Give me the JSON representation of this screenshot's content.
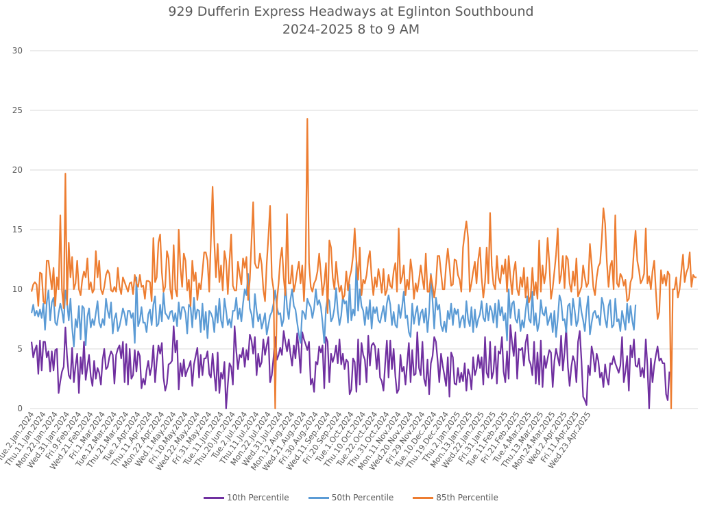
{
  "chart_data": {
    "type": "line",
    "title": "929 Dufferin Express Headways at Eglinton Southbound",
    "subtitle": "2024-2025 8 to 9 AM",
    "xlabel": "",
    "ylabel": "",
    "ylim": [
      0,
      30
    ],
    "yticks": [
      0,
      5,
      10,
      15,
      20,
      25,
      30
    ],
    "grid": true,
    "legend_position": "bottom",
    "x_tick_labels": [
      "Tue.2.Jan.2024",
      "Thu.11.Jan.2024",
      "Mon.22.Jan.2024",
      "Wed.31.Jan.2024",
      "Fri.9.Feb.2024",
      "Wed.21.Feb.2024",
      "Fri.1.Mar.2024",
      "Tue.12.Mar.2024",
      "Thu.21.Mar.2024",
      "Tue.2.Apr.2024",
      "Thu.11.Apr.2024",
      "Mon.22.Apr.2024",
      "Wed.1.May.2024",
      "Fri.10.May.2024",
      "Wed.22.May.2024",
      "Fri.31.May.2024",
      "Tue.11.Jun.2024",
      "Thu.20.Jun.2024",
      "Tue.2.Jul.2024",
      "Thu.11.Jul.2024",
      "Mon.22.Jul.2024",
      "Wed.31.Jul.2024",
      "Mon.12.Aug.2024",
      "Wed.21.Aug.2024",
      "Fri.30.Aug.2024",
      "Wed.11.Sep.2024",
      "Fri.20.Sep.2024",
      "Tue.1.Oct.2024",
      "Thu.10.Oct.2024",
      "Tue.22.Oct.2024",
      "Thu.31.Oct.2024",
      "Mon.11.Nov.2024",
      "Wed.20.Nov.2024",
      "Fri.29.Nov.2024",
      "Tue.10.Dec.2024",
      "Thu.19.Dec.2024",
      "Thu.2.Jan.2025",
      "Mon.13.Jan.2025",
      "Wed.22.Jan.2025",
      "Fri.31.Jan.2025",
      "Tue.11.Feb.2025",
      "Fri.21.Feb.2025",
      "Tue.4.Mar.2025",
      "Thu.13.Mar.2025",
      "Mon.24.Mar.2025",
      "Wed.2.Apr.2025",
      "Fri.11.Apr.2025",
      "Wed.23.Apr.2025"
    ],
    "points_per_tick": 7,
    "series": [
      {
        "name": "10th Percentile",
        "color": "#7030a0",
        "values": [
          5.6,
          4.3,
          4.9,
          5.3,
          2.9,
          5.7,
          3.2,
          5.6,
          5.6,
          4.3,
          4.8,
          3.1,
          4.8,
          3.2,
          4.9,
          5.0,
          1.3,
          2.3,
          3.1,
          3.5,
          6.8,
          4.4,
          2.8,
          2.5,
          5.1,
          2.2,
          3.6,
          4.6,
          1.3,
          4.3,
          2.9,
          5.6,
          2.4,
          3.5,
          4.5,
          2.7,
          1.9,
          4.0,
          2.5,
          3.4,
          3.0,
          2.0,
          4.1,
          5.0,
          3.3,
          3.5,
          4.3,
          4.8,
          4.5,
          2.1,
          4.5,
          5.0,
          5.3,
          4.2,
          5.6,
          2.2,
          5.4,
          2.0,
          5.0,
          2.5,
          2.8,
          4.9,
          3.1,
          4.8,
          4.4,
          1.7,
          2.5,
          2.0,
          3.2,
          4.0,
          2.8,
          3.5,
          5.3,
          2.2,
          3.9,
          5.3,
          4.6,
          5.5,
          2.6,
          1.5,
          2.1,
          3.7,
          3.8,
          4.0,
          6.9,
          4.7,
          5.7,
          1.6,
          3.8,
          2.7,
          4.1,
          2.7,
          3.2,
          3.5,
          4.0,
          1.9,
          3.7,
          4.4,
          5.1,
          2.6,
          4.5,
          2.8,
          4.2,
          4.2,
          4.8,
          2.9,
          2.6,
          4.6,
          2.9,
          1.5,
          4.7,
          1.3,
          3.0,
          2.5,
          3.9,
          0.0,
          2.0,
          3.8,
          3.5,
          2.0,
          6.9,
          4.8,
          3.3,
          4.5,
          4.3,
          5.1,
          3.5,
          4.9,
          4.1,
          6.2,
          5.7,
          4.6,
          6.0,
          2.8,
          4.6,
          3.5,
          3.9,
          5.8,
          4.5,
          5.3,
          6.0,
          2.2,
          2.8,
          4.3,
          6.0,
          4.1,
          4.5,
          5.1,
          4.5,
          6.5,
          5.6,
          4.8,
          5.8,
          4.6,
          3.6,
          5.3,
          4.2,
          6.3,
          4.9,
          3.0,
          6.4,
          5.8,
          5.4,
          4.9,
          5.6,
          2.0,
          2.5,
          1.4,
          3.9,
          3.7,
          5.2,
          4.7,
          5.3,
          1.7,
          6.0,
          5.6,
          2.2,
          4.6,
          3.9,
          4.4,
          5.3,
          3.8,
          5.8,
          3.7,
          4.6,
          3.3,
          4.1,
          3.9,
          1.2,
          1.6,
          4.2,
          3.9,
          1.4,
          5.8,
          2.0,
          5.5,
          4.5,
          4.1,
          2.2,
          6.1,
          3.6,
          5.3,
          5.5,
          5.2,
          3.3,
          5.0,
          2.6,
          2.3,
          1.5,
          3.8,
          5.7,
          2.6,
          5.7,
          3.3,
          5.0,
          2.7,
          1.3,
          1.6,
          4.5,
          3.1,
          3.5,
          2.0,
          3.8,
          5.5,
          2.2,
          4.9,
          2.8,
          2.9,
          6.4,
          3.4,
          2.8,
          5.6,
          2.5,
          1.9,
          4.1,
          1.2,
          3.8,
          4.4,
          6.0,
          5.6,
          4.0,
          2.2,
          4.6,
          3.6,
          2.8,
          1.9,
          4.3,
          1.0,
          4.7,
          4.3,
          2.1,
          2.0,
          3.4,
          2.2,
          3.0,
          2.3,
          3.8,
          1.5,
          3.3,
          2.8,
          1.6,
          4.3,
          2.8,
          3.3,
          4.5,
          3.4,
          4.3,
          2.0,
          6.0,
          3.0,
          2.6,
          5.6,
          2.5,
          3.1,
          5.2,
          2.1,
          4.8,
          4.6,
          6.0,
          3.1,
          2.2,
          4.8,
          2.5,
          7.0,
          5.5,
          4.4,
          6.4,
          2.5,
          5.0,
          4.9,
          5.1,
          3.6,
          5.5,
          6.2,
          4.1,
          3.7,
          2.8,
          5.6,
          2.1,
          4.7,
          2.0,
          5.7,
          1.8,
          4.4,
          3.4,
          4.2,
          4.9,
          4.7,
          1.8,
          4.0,
          5.0,
          4.3,
          3.6,
          6.1,
          3.2,
          4.7,
          6.8,
          3.5,
          1.9,
          3.5,
          4.4,
          3.9,
          2.2,
          5.6,
          6.5,
          4.0,
          1.0,
          0.7,
          0.3,
          3.6,
          2.8,
          5.2,
          4.5,
          3.1,
          4.6,
          4.0,
          2.6,
          3.0,
          1.8,
          3.7,
          2.6,
          2.0,
          3.8,
          3.7,
          4.4,
          3.8,
          3.4,
          3.0,
          3.6,
          6.0,
          2.2,
          3.1,
          4.4,
          1.5,
          5.3,
          4.3,
          5.8,
          3.6,
          3.5,
          4.2,
          2.7,
          3.4,
          2.6,
          5.8,
          3.6,
          0.0,
          4.2,
          2.2,
          3.6,
          4.5,
          5.2,
          4.0,
          4.2,
          3.8,
          3.8,
          1.2,
          0.7,
          3.1
        ]
      },
      {
        "name": "50th Percentile",
        "color": "#5b9bd5",
        "values": [
          8.0,
          8.7,
          7.8,
          8.2,
          7.7,
          8.3,
          7.6,
          8.8,
          6.6,
          8.9,
          9.9,
          7.4,
          8.9,
          9.3,
          7.2,
          7.0,
          8.0,
          8.8,
          8.2,
          7.2,
          9.9,
          8.9,
          7.4,
          9.2,
          6.8,
          5.2,
          7.5,
          6.8,
          8.6,
          5.8,
          8.6,
          8.4,
          5.3,
          7.7,
          8.4,
          6.8,
          7.5,
          7.0,
          8.0,
          9.0,
          7.2,
          6.8,
          7.5,
          7.0,
          9.2,
          8.2,
          7.6,
          8.9,
          6.3,
          7.5,
          8.0,
          6.5,
          6.9,
          7.6,
          8.4,
          7.9,
          7.0,
          8.2,
          8.2,
          7.6,
          8.0,
          5.5,
          11.0,
          6.9,
          7.4,
          8.5,
          7.2,
          7.2,
          6.4,
          7.9,
          8.3,
          7.0,
          8.7,
          9.4,
          6.9,
          7.1,
          8.7,
          7.3,
          9.7,
          8.0,
          7.8,
          7.5,
          8.1,
          8.2,
          7.3,
          8.0,
          6.9,
          8.9,
          7.5,
          8.5,
          8.5,
          8.0,
          6.3,
          8.7,
          8.5,
          6.8,
          9.3,
          7.5,
          8.3,
          8.2,
          6.4,
          8.8,
          6.6,
          8.1,
          5.9,
          8.2,
          8.0,
          7.6,
          6.4,
          8.6,
          7.2,
          9.2,
          7.4,
          6.8,
          9.2,
          8.2,
          7.0,
          7.5,
          6.8,
          8.2,
          8.2,
          9.3,
          7.5,
          8.4,
          7.3,
          8.8,
          10.0,
          9.5,
          11.3,
          8.4,
          7.9,
          6.8,
          9.6,
          8.2,
          7.3,
          7.9,
          6.7,
          7.3,
          8.0,
          6.2,
          7.0,
          7.8,
          8.1,
          8.8,
          9.9,
          8.5,
          7.9,
          8.0,
          6.9,
          7.5,
          10.6,
          8.5,
          7.5,
          9.1,
          10.0,
          8.6,
          8.3,
          7.2,
          6.2,
          5.5,
          8.2,
          8.0,
          7.5,
          9.2,
          8.8,
          8.5,
          7.6,
          8.4,
          10.0,
          8.7,
          9.1,
          8.5,
          7.2,
          5.5,
          8.4,
          9.3,
          9.0,
          7.3,
          7.6,
          8.4,
          10.1,
          8.2,
          7.0,
          7.8,
          9.4,
          8.8,
          9.0,
          7.2,
          10.4,
          7.4,
          8.3,
          7.8,
          12.3,
          8.2,
          10.0,
          8.6,
          8.2,
          7.0,
          8.5,
          7.5,
          9.1,
          6.7,
          8.5,
          8.0,
          8.5,
          7.4,
          7.2,
          7.9,
          8.6,
          7.3,
          8.8,
          9.5,
          8.7,
          7.0,
          8.1,
          7.0,
          6.8,
          8.7,
          7.6,
          8.5,
          9.8,
          7.6,
          7.8,
          6.4,
          6.0,
          8.8,
          7.1,
          8.0,
          8.6,
          7.0,
          8.0,
          8.3,
          7.2,
          8.4,
          6.4,
          8.1,
          11.3,
          9.0,
          6.7,
          9.3,
          8.3,
          8.7,
          7.0,
          6.5,
          7.3,
          6.4,
          8.2,
          7.5,
          8.8,
          7.0,
          8.4,
          7.9,
          8.3,
          6.8,
          7.5,
          7.8,
          6.8,
          9.0,
          7.5,
          6.9,
          8.5,
          6.4,
          8.3,
          6.8,
          7.5,
          7.9,
          9.0,
          7.6,
          7.3,
          8.8,
          7.4,
          8.6,
          8.2,
          7.2,
          8.8,
          6.8,
          9.1,
          7.8,
          8.5,
          7.4,
          8.0,
          5.7,
          10.0,
          7.6,
          8.8,
          9.0,
          7.5,
          7.2,
          8.3,
          6.5,
          7.4,
          6.8,
          8.2,
          9.4,
          7.5,
          7.2,
          9.8,
          7.0,
          8.0,
          6.5,
          7.2,
          9.1,
          8.0,
          7.8,
          8.5,
          7.0,
          7.5,
          8.0,
          6.4,
          8.2,
          6.0,
          7.5,
          9.5,
          9.0,
          7.4,
          7.5,
          6.4,
          8.6,
          8.8,
          7.0,
          9.2,
          8.2,
          6.9,
          7.4,
          9.3,
          8.1,
          7.4,
          6.5,
          8.3,
          9.4,
          6.2,
          7.2,
          8.0,
          8.2,
          7.6,
          7.8,
          7.0,
          9.3,
          8.7,
          7.5,
          6.8,
          8.6,
          9.1,
          6.8,
          7.0,
          9.2,
          7.3,
          7.5,
          6.5,
          8.2,
          7.4,
          6.6,
          8.8,
          7.2,
          8.6,
          7.4,
          6.6,
          8.7
        ]
      },
      {
        "name": "85th Percentile",
        "color": "#ed7d31",
        "values": [
          9.8,
          10.4,
          10.6,
          10.4,
          8.6,
          11.4,
          11.3,
          9.0,
          8.8,
          12.4,
          12.4,
          11.2,
          10.0,
          11.8,
          8.6,
          11.0,
          10.0,
          16.2,
          9.9,
          8.4,
          19.7,
          8.7,
          13.9,
          11.0,
          12.7,
          10.0,
          10.5,
          12.4,
          10.0,
          9.5,
          10.8,
          11.5,
          11.0,
          12.6,
          10.0,
          10.6,
          9.7,
          10.0,
          13.2,
          11.0,
          12.4,
          10.0,
          9.6,
          10.2,
          11.2,
          11.6,
          11.3,
          9.9,
          9.8,
          10.2,
          9.8,
          11.8,
          10.2,
          9.6,
          11.0,
          10.6,
          10.2,
          9.8,
          10.5,
          10.6,
          9.6,
          11.2,
          10.5,
          10.2,
          11.2,
          10.2,
          10.3,
          9.2,
          10.7,
          10.7,
          10.6,
          9.0,
          14.3,
          10.6,
          11.0,
          13.9,
          14.6,
          11.4,
          9.8,
          10.2,
          13.2,
          12.6,
          10.0,
          9.2,
          13.7,
          10.0,
          9.4,
          15.0,
          11.8,
          10.2,
          13.0,
          12.4,
          9.9,
          10.8,
          8.6,
          12.4,
          10.7,
          11.4,
          9.1,
          10.5,
          10.0,
          11.5,
          13.1,
          13.1,
          12.4,
          9.8,
          14.1,
          18.6,
          14.0,
          11.0,
          13.8,
          10.6,
          12.0,
          9.9,
          13.2,
          12.4,
          9.6,
          12.4,
          14.6,
          10.3,
          9.9,
          9.9,
          12.3,
          11.3,
          10.4,
          12.6,
          11.8,
          12.7,
          9.1,
          10.8,
          14.1,
          17.3,
          12.2,
          11.8,
          11.8,
          13.0,
          12.1,
          10.0,
          9.0,
          12.2,
          14.4,
          17.0,
          11.0,
          10.0,
          0.0,
          9.0,
          10.5,
          12.5,
          13.5,
          11.0,
          9.5,
          16.3,
          10.5,
          10.5,
          12.0,
          9.8,
          10.5,
          11.5,
          12.3,
          10.5,
          12.0,
          9.0,
          12.3,
          24.3,
          12.2,
          10.2,
          9.8,
          10.5,
          10.8,
          11.5,
          13.0,
          11.3,
          9.5,
          10.5,
          12.2,
          8.0,
          14.1,
          13.5,
          11.0,
          10.0,
          12.3,
          10.8,
          9.8,
          10.3,
          9.2,
          9.5,
          11.5,
          9.9,
          11.0,
          11.6,
          12.8,
          15.1,
          12.4,
          10.8,
          13.5,
          9.5,
          10.8,
          10.5,
          11.2,
          12.5,
          13.2,
          11.0,
          9.5,
          11.0,
          10.2,
          11.7,
          10.9,
          9.7,
          11.7,
          9.5,
          9.9,
          11.2,
          10.3,
          10.1,
          11.5,
          12.2,
          9.8,
          15.1,
          10.5,
          11.0,
          12.0,
          9.5,
          10.8,
          10.0,
          12.5,
          11.4,
          9.2,
          10.5,
          9.8,
          10.8,
          12.0,
          10.9,
          10.0,
          13.0,
          9.8,
          9.8,
          11.2,
          10.3,
          9.3,
          10.5,
          12.8,
          12.8,
          11.4,
          10.0,
          10.0,
          12.0,
          13.4,
          12.0,
          10.3,
          10.4,
          12.5,
          12.4,
          11.2,
          10.8,
          9.8,
          13.5,
          14.7,
          15.7,
          14.3,
          9.8,
          10.5,
          11.5,
          12.3,
          10.5,
          12.5,
          13.5,
          11.0,
          9.3,
          10.6,
          13.5,
          10.5,
          16.4,
          12.0,
          10.4,
          10.0,
          12.8,
          11.0,
          10.5,
          12.0,
          11.3,
          12.5,
          9.8,
          12.8,
          11.0,
          9.6,
          11.5,
          12.3,
          10.0,
          9.5,
          11.0,
          10.2,
          11.8,
          9.3,
          11.0,
          8.9,
          9.4,
          11.8,
          9.5,
          10.6,
          9.2,
          14.1,
          9.8,
          12.0,
          10.5,
          11.4,
          14.3,
          12.2,
          9.2,
          10.1,
          11.5,
          12.9,
          15.1,
          10.5,
          11.2,
          12.8,
          10.1,
          12.8,
          12.5,
          10.5,
          9.8,
          11.5,
          10.3,
          12.6,
          9.4,
          9.8,
          10.2,
          12.0,
          11.0,
          10.2,
          10.5,
          13.8,
          12.1,
          10.2,
          9.5,
          11.0,
          11.9,
          12.2,
          14.2,
          16.8,
          15.5,
          12.3,
          10.2,
          11.9,
          12.4,
          10.0,
          16.2,
          10.5,
          10.2,
          11.3,
          11.0,
          10.3,
          10.8,
          9.0,
          9.2,
          10.6,
          11.0,
          13.3,
          14.9,
          12.4,
          11.6,
          10.5,
          10.8,
          11.3,
          15.1,
          10.5,
          11.1,
          10.0,
          11.5,
          12.4,
          9.8,
          7.5,
          8.1,
          11.6,
          10.5,
          11.2,
          10.3,
          11.5,
          11.2,
          0.0,
          10.0,
          10.0,
          11.0,
          9.3,
          10.0,
          11.5,
          12.9,
          10.6,
          11.4,
          11.8,
          13.1,
          10.2,
          11.2,
          11.0,
          11.0
        ]
      }
    ]
  }
}
